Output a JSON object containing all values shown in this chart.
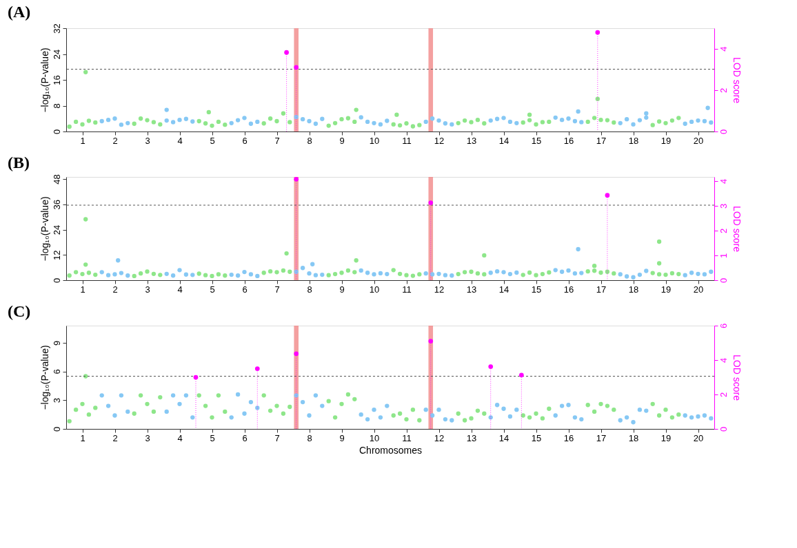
{
  "chart_data": [
    {
      "type": "scatter",
      "title": "(A)",
      "ylabel": "−log₁₀(P-value)",
      "y2label": "LOD score",
      "grid": false,
      "marker": "circle",
      "xlim": [
        0.5,
        20.5
      ],
      "xticks": [
        1,
        2,
        3,
        4,
        5,
        6,
        7,
        8,
        9,
        10,
        11,
        12,
        13,
        14,
        15,
        16,
        17,
        18,
        19,
        20
      ],
      "ylim": [
        0,
        32
      ],
      "yticks": [
        0,
        8,
        16,
        24,
        32
      ],
      "y2lim": [
        0,
        4.99
      ],
      "y2ticks": [
        0,
        2,
        4
      ],
      "ref_lines": [
        {
          "axis": "y",
          "value": 19.3,
          "color": "#555555",
          "line_style": "dashed"
        }
      ],
      "bands": [
        {
          "axis": "x",
          "from": 7.53,
          "to": 7.67,
          "color": "#f08080"
        },
        {
          "axis": "x",
          "from": 11.68,
          "to": 11.82,
          "color": "#f08080"
        }
      ],
      "series": [
        {
          "color": "#8ee68a",
          "x": [
            0.6,
            0.8,
            1,
            1.2,
            1.4,
            2.6,
            2.8,
            3,
            3.2,
            3.4,
            4.6,
            4.8,
            5,
            5.2,
            5.4,
            6.6,
            6.8,
            7,
            7.2,
            7.4,
            8.6,
            8.8,
            9,
            9.2,
            9.4,
            10.6,
            10.8,
            11,
            11.2,
            11.4,
            12.6,
            12.8,
            13,
            13.2,
            13.4,
            14.6,
            14.8,
            15,
            15.2,
            15.4,
            16.6,
            16.8,
            17,
            17.2,
            17.4,
            18.6,
            18.8,
            19,
            19.2,
            19.4,
            1.1,
            4.9,
            9.45,
            10.7,
            14.8,
            16.9
          ],
          "values": [
            1.5,
            3.0,
            2.2,
            3.3,
            2.8,
            2.4,
            4.0,
            3.5,
            2.9,
            2.2,
            3.2,
            2.5,
            1.8,
            3.0,
            2.1,
            2.5,
            4.0,
            3.2,
            5.6,
            2.9,
            1.8,
            2.6,
            3.8,
            4.1,
            3.0,
            2.2,
            1.9,
            2.5,
            1.6,
            2.0,
            2.6,
            3.4,
            2.9,
            3.6,
            2.5,
            2.8,
            3.5,
            2.2,
            2.9,
            3.0,
            3.0,
            4.2,
            3.6,
            3.5,
            2.8,
            2.0,
            3.1,
            2.6,
            3.4,
            4.2,
            18.4,
            6.0,
            6.7,
            5.2,
            5.2,
            10.1
          ]
        },
        {
          "color": "#86c8f4",
          "x": [
            1.6,
            1.8,
            2,
            2.2,
            2.4,
            3.6,
            3.8,
            4,
            4.2,
            4.4,
            5.6,
            5.8,
            6,
            6.2,
            6.4,
            7.6,
            7.8,
            8,
            8.2,
            8.4,
            9.6,
            9.8,
            10,
            10.2,
            10.4,
            11.6,
            11.8,
            12,
            12.2,
            12.4,
            13.6,
            13.8,
            14,
            14.2,
            14.4,
            15.6,
            15.8,
            16,
            16.2,
            16.4,
            17.6,
            17.8,
            18,
            18.2,
            18.4,
            19.6,
            19.8,
            20,
            20.2,
            20.4,
            3.6,
            16.3,
            18.4,
            20.3
          ],
          "values": [
            3.2,
            3.6,
            4.0,
            2.1,
            2.6,
            3.4,
            2.9,
            3.6,
            3.9,
            3.1,
            2.6,
            3.5,
            4.2,
            2.4,
            3.0,
            4.5,
            3.8,
            3.2,
            2.4,
            3.9,
            4.4,
            3.0,
            2.6,
            2.2,
            3.3,
            3.0,
            4.0,
            3.4,
            2.5,
            2.2,
            3.4,
            3.9,
            4.2,
            3.0,
            2.6,
            4.3,
            3.6,
            4.0,
            3.2,
            2.9,
            2.6,
            3.8,
            2.2,
            3.5,
            4.3,
            2.4,
            3.0,
            3.4,
            3.2,
            2.8,
            6.7,
            6.2,
            5.6,
            7.3
          ]
        },
        {
          "type": "lollipop",
          "axis": "y2",
          "color": "#ff00ff",
          "x": [
            7.3,
            7.6,
            16.9
          ],
          "values": [
            3.82,
            3.1,
            4.79
          ]
        }
      ]
    },
    {
      "type": "scatter",
      "title": "(B)",
      "ylabel": "−log₁₀(P-value)",
      "y2label": "LOD score",
      "grid": false,
      "marker": "circle",
      "xlim": [
        0.5,
        20.5
      ],
      "xticks": [
        1,
        2,
        3,
        4,
        5,
        6,
        7,
        8,
        9,
        10,
        11,
        12,
        13,
        14,
        15,
        16,
        17,
        18,
        19,
        20
      ],
      "ylim": [
        0,
        49
      ],
      "yticks": [
        0,
        12,
        24,
        36,
        48
      ],
      "y2lim": [
        0,
        4.16
      ],
      "y2ticks": [
        0,
        1,
        2,
        3,
        4
      ],
      "ref_lines": [
        {
          "axis": "y",
          "value": 35.6,
          "color": "#555555",
          "line_style": "dashed"
        }
      ],
      "bands": [
        {
          "axis": "x",
          "from": 7.53,
          "to": 7.67,
          "color": "#f08080"
        },
        {
          "axis": "x",
          "from": 11.68,
          "to": 11.82,
          "color": "#f08080"
        }
      ],
      "series": [
        {
          "color": "#8ee68a",
          "x": [
            0.6,
            0.8,
            1,
            1.2,
            1.4,
            2.6,
            2.8,
            3,
            3.2,
            3.4,
            4.6,
            4.8,
            5,
            5.2,
            5.4,
            6.6,
            6.8,
            7,
            7.2,
            7.4,
            8.6,
            8.8,
            9,
            9.2,
            9.4,
            10.6,
            10.8,
            11,
            11.2,
            11.4,
            12.6,
            12.8,
            13,
            13.2,
            13.4,
            14.6,
            14.8,
            15,
            15.2,
            15.4,
            16.6,
            16.8,
            17,
            17.2,
            17.4,
            18.6,
            18.8,
            19,
            19.2,
            19.4,
            1.1,
            1.1,
            7.3,
            9.45,
            13.4,
            16.8,
            18.8,
            18.8
          ],
          "values": [
            2.2,
            3.8,
            2.9,
            3.5,
            2.6,
            2.0,
            3.2,
            4.1,
            3.0,
            2.5,
            3.1,
            2.4,
            2.0,
            2.8,
            2.2,
            3.5,
            4.2,
            3.8,
            4.6,
            4.0,
            2.4,
            2.9,
            3.5,
            4.6,
            3.8,
            4.8,
            3.0,
            2.4,
            2.1,
            2.8,
            2.9,
            3.8,
            4.0,
            3.2,
            2.8,
            2.5,
            3.6,
            2.4,
            2.9,
            3.7,
            4.2,
            4.5,
            3.6,
            4.0,
            3.2,
            3.4,
            2.8,
            2.6,
            3.3,
            2.9,
            28.9,
            7.4,
            12.7,
            9.4,
            11.8,
            6.8,
            18.3,
            8.0
          ]
        },
        {
          "color": "#86c8f4",
          "x": [
            1.6,
            1.8,
            2,
            2.2,
            2.4,
            3.6,
            3.8,
            4,
            4.2,
            4.4,
            5.6,
            5.8,
            6,
            6.2,
            6.4,
            7.6,
            7.8,
            8,
            8.2,
            8.4,
            9.6,
            9.8,
            10,
            10.2,
            10.4,
            11.6,
            11.8,
            12,
            12.2,
            12.4,
            13.6,
            13.8,
            14,
            14.2,
            14.4,
            15.6,
            15.8,
            16,
            16.2,
            16.4,
            17.6,
            17.8,
            18,
            18.2,
            18.4,
            19.6,
            19.8,
            20,
            20.2,
            20.4,
            2.1,
            8.1,
            16.3
          ],
          "values": [
            3.8,
            2.4,
            2.8,
            3.4,
            2.2,
            3.0,
            2.2,
            4.8,
            2.7,
            2.5,
            2.6,
            2.2,
            3.9,
            2.8,
            2.0,
            4.0,
            5.8,
            3.2,
            2.4,
            2.6,
            4.6,
            3.5,
            2.8,
            3.3,
            2.9,
            3.2,
            2.8,
            3.0,
            2.4,
            2.2,
            3.5,
            4.2,
            3.8,
            2.9,
            3.6,
            4.8,
            4.0,
            4.6,
            3.2,
            3.4,
            2.8,
            1.8,
            1.4,
            2.6,
            4.4,
            2.4,
            3.5,
            3.0,
            2.8,
            4.0,
            9.4,
            7.6,
            14.7
          ]
        },
        {
          "type": "lollipop",
          "axis": "y2",
          "color": "#ff00ff",
          "x": [
            7.6,
            11.75,
            17.2
          ],
          "values": [
            4.07,
            3.12,
            3.42
          ]
        }
      ]
    },
    {
      "type": "scatter",
      "title": "(C)",
      "xlabel": "Chromosomes",
      "ylabel": "−log₁₀(P-value)",
      "y2label": "LOD score",
      "grid": false,
      "marker": "circle",
      "xlim": [
        0.5,
        20.5
      ],
      "xticks": [
        1,
        2,
        3,
        4,
        5,
        6,
        7,
        8,
        9,
        10,
        11,
        12,
        13,
        14,
        15,
        16,
        17,
        18,
        19,
        20
      ],
      "ylim": [
        0,
        10.78
      ],
      "yticks": [
        0,
        3,
        6,
        9
      ],
      "y2lim": [
        0,
        6
      ],
      "y2ticks": [
        0,
        2,
        4,
        6
      ],
      "ref_lines": [
        {
          "axis": "y",
          "value": 5.5,
          "color": "#555555",
          "line_style": "dashed"
        }
      ],
      "bands": [
        {
          "axis": "x",
          "from": 7.53,
          "to": 7.67,
          "color": "#f08080"
        },
        {
          "axis": "x",
          "from": 11.68,
          "to": 11.82,
          "color": "#f08080"
        }
      ],
      "series": [
        {
          "color": "#8ee68a",
          "x": [
            0.6,
            0.8,
            1,
            1.2,
            1.4,
            2.6,
            2.8,
            3,
            3.2,
            3.4,
            4.6,
            4.8,
            5,
            5.2,
            5.4,
            6.6,
            6.8,
            7,
            7.2,
            7.4,
            8.6,
            8.8,
            9,
            9.2,
            9.4,
            10.6,
            10.8,
            11,
            11.2,
            11.4,
            12.6,
            12.8,
            13,
            13.2,
            13.4,
            14.6,
            14.8,
            15,
            15.2,
            15.4,
            16.6,
            16.8,
            17,
            17.2,
            17.4,
            18.6,
            18.8,
            19,
            19.2,
            19.4,
            1.1
          ],
          "values": [
            0.8,
            2.0,
            2.6,
            1.5,
            2.2,
            1.6,
            3.5,
            2.6,
            1.8,
            3.3,
            3.5,
            2.4,
            1.2,
            3.5,
            1.8,
            3.5,
            1.9,
            2.4,
            1.6,
            2.3,
            2.9,
            1.2,
            2.6,
            3.6,
            3.1,
            1.4,
            1.6,
            1.0,
            2.0,
            0.9,
            1.6,
            0.9,
            1.1,
            1.9,
            1.6,
            1.4,
            1.2,
            1.6,
            1.1,
            2.1,
            2.5,
            1.8,
            2.6,
            2.4,
            2.0,
            2.6,
            1.4,
            2.0,
            1.2,
            1.5,
            5.5
          ]
        },
        {
          "color": "#86c8f4",
          "x": [
            1.6,
            1.8,
            2,
            2.2,
            2.4,
            3.6,
            3.8,
            4,
            4.2,
            4.4,
            5.6,
            5.8,
            6,
            6.2,
            6.4,
            7.6,
            7.8,
            8,
            8.2,
            8.4,
            9.6,
            9.8,
            10,
            10.2,
            10.4,
            11.6,
            11.8,
            12,
            12.2,
            12.4,
            13.6,
            13.8,
            14,
            14.2,
            14.4,
            15.6,
            15.8,
            16,
            16.2,
            16.4,
            17.6,
            17.8,
            18,
            18.2,
            18.4,
            19.6,
            19.8,
            20,
            20.2,
            20.4
          ],
          "values": [
            3.5,
            2.4,
            1.4,
            3.5,
            1.8,
            1.8,
            3.5,
            2.6,
            3.5,
            1.2,
            1.2,
            3.6,
            1.6,
            2.8,
            2.2,
            3.5,
            2.8,
            1.4,
            3.5,
            2.4,
            1.5,
            1.0,
            2.0,
            1.2,
            2.4,
            2.0,
            1.4,
            2.0,
            1.0,
            0.9,
            1.2,
            2.5,
            2.1,
            1.3,
            2.0,
            1.4,
            2.4,
            2.5,
            1.2,
            1.0,
            0.9,
            1.2,
            0.7,
            2.0,
            1.9,
            1.4,
            1.2,
            1.3,
            1.4,
            1.1
          ]
        },
        {
          "type": "lollipop",
          "axis": "y2",
          "color": "#ff00ff",
          "x": [
            4.5,
            6.4,
            7.6,
            11.75,
            13.6,
            14.55
          ],
          "values": [
            3.0,
            3.5,
            4.37,
            5.1,
            3.62,
            3.13
          ]
        }
      ]
    }
  ]
}
